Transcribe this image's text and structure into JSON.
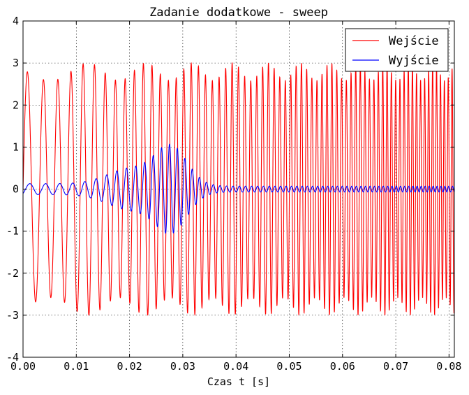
{
  "chart_data": {
    "type": "line",
    "title": "Zadanie dodatkowe - sweep",
    "xlabel": "Czas t [s]",
    "ylabel": "",
    "xlim": [
      0.0,
      0.081
    ],
    "ylim": [
      -4,
      4
    ],
    "grid": true,
    "legend_position": "top-right",
    "x_ticks": [
      "0.00",
      "0.01",
      "0.02",
      "0.03",
      "0.04",
      "0.05",
      "0.06",
      "0.07",
      "0.08"
    ],
    "y_ticks": [
      "-4",
      "-3",
      "-2",
      "-1",
      "0",
      "1",
      "2",
      "3",
      "4"
    ],
    "x_tick_values": [
      0.0,
      0.01,
      0.02,
      0.03,
      0.04,
      0.05,
      0.06,
      0.07,
      0.08
    ],
    "y_tick_values": [
      -4,
      -3,
      -2,
      -1,
      0,
      1,
      2,
      3,
      4
    ],
    "series": [
      {
        "name": "Wejście",
        "color": "#ff0000",
        "description_values": {
          "amplitude": 3.0,
          "start_frequency_hz": 300,
          "end_frequency_hz": 1400,
          "duration_s": 0.081
        }
      },
      {
        "name": "Wyjście",
        "color": "#0000ff",
        "description_values": {
          "peak_amplitude": 1.0,
          "peak_time_s": 0.0275,
          "baseline_amplitude": 0.07
        }
      }
    ]
  }
}
